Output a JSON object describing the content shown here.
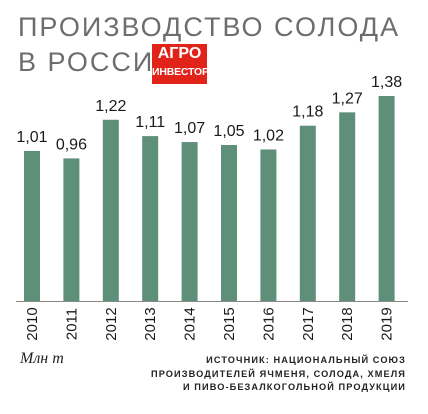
{
  "title": {
    "line1": "ПРОИЗВОДСТВО СОЛОДА",
    "line2": "В РОССИИ"
  },
  "logo": {
    "line1": "АГРО",
    "line2": "ИНВЕСТОР",
    "color": "#e2231a"
  },
  "unit": "Млн т",
  "source": {
    "line1": "ИСТОЧНИК: НАЦИОНАЛЬНЫЙ СОЮЗ",
    "line2": "ПРОИЗВОДИТЕЛЕЙ ЯЧМЕНЯ, СОЛОДА, ХМЕЛЯ",
    "line3": "И ПИВО-БЕЗАЛКОГОЛЬНОЙ ПРОДУКЦИИ"
  },
  "colors": {
    "bar": "#5e8f78",
    "title": "#6d6d6d"
  },
  "chart_data": {
    "type": "bar",
    "title": "ПРОИЗВОДСТВО СОЛОДА В РОССИИ",
    "ylabel": "Млн т",
    "categories": [
      "2010",
      "2011",
      "2012",
      "2013",
      "2014",
      "2015",
      "2016",
      "2017",
      "2018",
      "2019"
    ],
    "values": [
      1.01,
      0.96,
      1.22,
      1.11,
      1.07,
      1.05,
      1.02,
      1.18,
      1.27,
      1.38
    ],
    "value_labels": [
      "1,01",
      "0,96",
      "1,22",
      "1,11",
      "1,07",
      "1,05",
      "1,02",
      "1,18",
      "1,27",
      "1,38"
    ],
    "ylim": [
      0,
      1.38
    ],
    "grid": false,
    "legend": "none"
  }
}
